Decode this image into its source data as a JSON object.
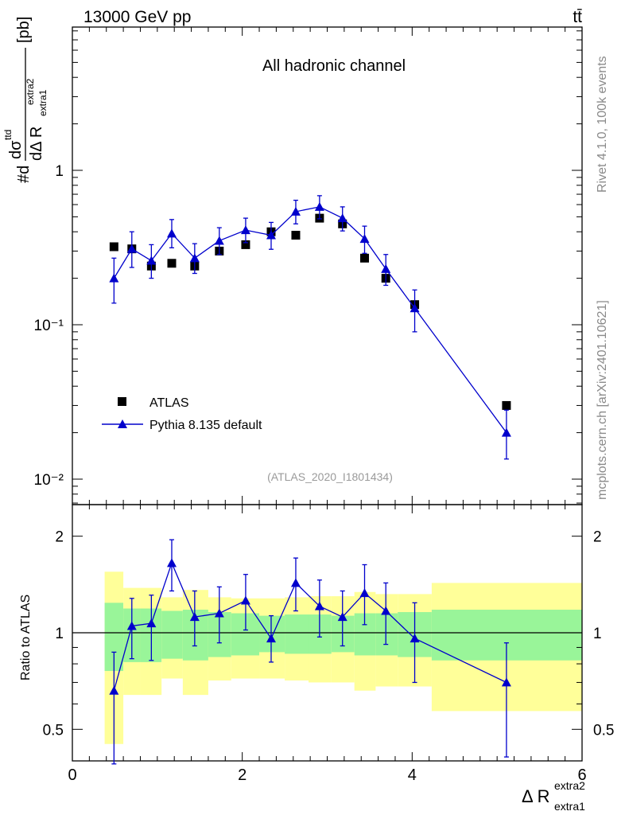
{
  "header": {
    "energy_label": "13000 GeV pp",
    "process_label": "tt̄",
    "channel_label": "All hadronic channel",
    "analysis_id": "(ATLAS_2020_I1801434)",
    "side_text_upper": "Rivet 4.1.0,  100k events",
    "side_text_lower": "mcplots.cern.ch [arXiv:2401.10621]"
  },
  "legend": {
    "atlas_label": "ATLAS",
    "pythia_label": "Pythia 8.135 default"
  },
  "colors": {
    "data": "#000000",
    "mc": "#0000cc",
    "band_inner": "#99f599",
    "band_outer": "#ffff99"
  },
  "chart_data": {
    "type": "scatter",
    "title": "All hadronic channel",
    "xlabel": "Δ R extra1 extra2",
    "ylabel": "#d dσ ttd / dΔ R extra1 extra2 [pb]",
    "ratio_ylabel": "Ratio to ATLAS",
    "x_ticks": [
      "0",
      "2",
      "4",
      "6"
    ],
    "y_ticks": [
      "10⁻²",
      "10⁻¹",
      "1"
    ],
    "ratio_y_ticks": [
      "0.5",
      "1",
      "2"
    ],
    "xlim": [
      0,
      6
    ],
    "ylim": [
      0.008,
      8
    ],
    "ratio_ylim": [
      0.42,
      2.3
    ],
    "yscale": "log",
    "atlas": {
      "x": [
        0.49,
        0.7,
        0.93,
        1.17,
        1.44,
        1.73,
        2.04,
        2.34,
        2.63,
        2.91,
        3.18,
        3.44,
        3.69,
        4.03,
        5.11
      ],
      "y": [
        0.32,
        0.31,
        0.24,
        0.25,
        0.24,
        0.3,
        0.33,
        0.4,
        0.38,
        0.49,
        0.45,
        0.27,
        0.2,
        0.135,
        0.03
      ]
    },
    "pythia": {
      "x": [
        0.49,
        0.7,
        0.93,
        1.17,
        1.44,
        1.73,
        2.04,
        2.34,
        2.63,
        2.91,
        3.18,
        3.44,
        3.69,
        4.03,
        5.11
      ],
      "y": [
        0.2,
        0.31,
        0.26,
        0.39,
        0.27,
        0.35,
        0.41,
        0.38,
        0.54,
        0.58,
        0.49,
        0.36,
        0.23,
        0.128,
        0.02
      ],
      "err_lo": [
        0.062,
        0.075,
        0.06,
        0.075,
        0.055,
        0.065,
        0.07,
        0.072,
        0.09,
        0.095,
        0.085,
        0.07,
        0.05,
        0.038,
        0.0065
      ],
      "err_hi": [
        0.07,
        0.09,
        0.07,
        0.09,
        0.065,
        0.075,
        0.08,
        0.08,
        0.1,
        0.105,
        0.09,
        0.075,
        0.055,
        0.04,
        0.008
      ]
    },
    "ratio": {
      "y": [
        0.66,
        1.05,
        1.07,
        1.65,
        1.12,
        1.15,
        1.26,
        0.96,
        1.43,
        1.21,
        1.12,
        1.33,
        1.17,
        0.96,
        0.7
      ],
      "err_lo": [
        0.27,
        0.22,
        0.25,
        0.3,
        0.21,
        0.22,
        0.24,
        0.15,
        0.26,
        0.24,
        0.21,
        0.27,
        0.25,
        0.26,
        0.29
      ],
      "err_hi": [
        0.21,
        0.23,
        0.24,
        0.3,
        0.23,
        0.24,
        0.26,
        0.17,
        0.28,
        0.25,
        0.23,
        0.3,
        0.26,
        0.28,
        0.23
      ]
    },
    "bands": {
      "edges": [
        0.38,
        0.6,
        0.8,
        1.05,
        1.3,
        1.6,
        1.87,
        2.2,
        2.5,
        2.78,
        3.05,
        3.32,
        3.57,
        3.83,
        4.23,
        6.0
      ],
      "inner_lo": [
        0.76,
        0.81,
        0.81,
        0.83,
        0.82,
        0.84,
        0.85,
        0.87,
        0.86,
        0.86,
        0.87,
        0.85,
        0.85,
        0.84,
        0.82
      ],
      "inner_hi": [
        1.24,
        1.19,
        1.19,
        1.17,
        1.18,
        1.16,
        1.15,
        1.13,
        1.14,
        1.14,
        1.13,
        1.15,
        1.15,
        1.16,
        1.18
      ],
      "outer_lo": [
        0.45,
        0.64,
        0.64,
        0.72,
        0.64,
        0.71,
        0.72,
        0.72,
        0.71,
        0.7,
        0.7,
        0.66,
        0.68,
        0.68,
        0.57
      ],
      "outer_hi": [
        1.55,
        1.38,
        1.38,
        1.29,
        1.36,
        1.29,
        1.28,
        1.28,
        1.29,
        1.3,
        1.3,
        1.34,
        1.32,
        1.32,
        1.43
      ]
    }
  }
}
